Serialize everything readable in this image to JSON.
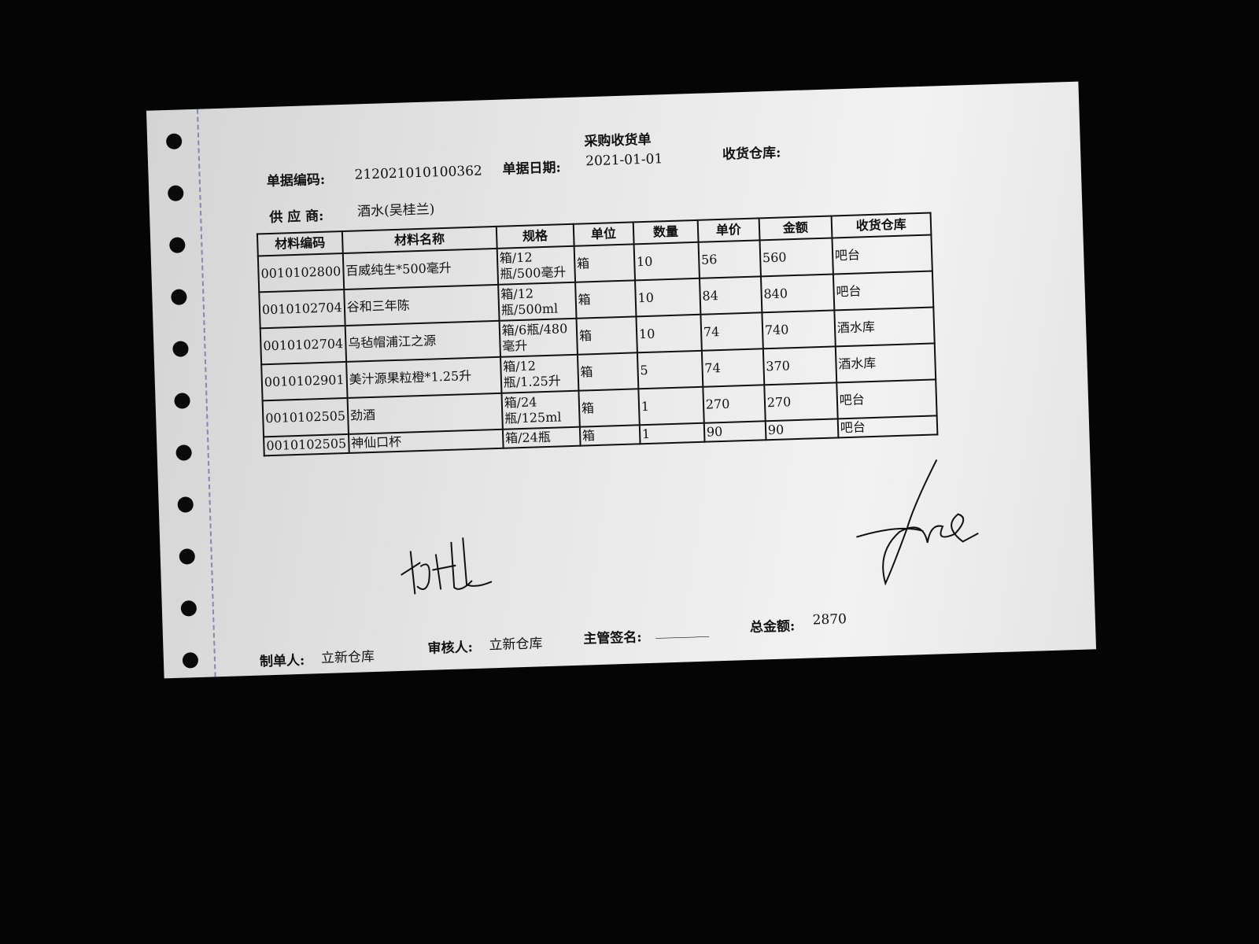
{
  "document": {
    "title": "采购收货单",
    "doc_no_label": "单据编码:",
    "doc_no": "212021010100362",
    "date_label": "单据日期:",
    "date": "2021-01-01",
    "warehouse_label": "收货仓库:",
    "supplier_label": "供 应 商:",
    "supplier": "酒水(吴桂兰)"
  },
  "table": {
    "headers": [
      "材料编码",
      "材料名称",
      "规格",
      "单位",
      "数量",
      "单价",
      "金额",
      "收货仓库"
    ],
    "rows": [
      [
        "0010102800",
        "百威纯生*500毫升",
        "箱/12瓶/500毫升",
        "箱",
        "10",
        "56",
        "560",
        "吧台"
      ],
      [
        "0010102704",
        "谷和三年陈",
        "箱/12瓶/500ml",
        "箱",
        "10",
        "84",
        "840",
        "吧台"
      ],
      [
        "0010102704",
        "乌毡帽浦江之源",
        "箱/6瓶/480毫升",
        "箱",
        "10",
        "74",
        "740",
        "酒水库"
      ],
      [
        "0010102901",
        "美汁源果粒橙*1.25升",
        "箱/12瓶/1.25升",
        "箱",
        "5",
        "74",
        "370",
        "酒水库"
      ],
      [
        "0010102505",
        "劲酒",
        "箱/24瓶/125ml",
        "箱",
        "1",
        "270",
        "270",
        "吧台"
      ],
      [
        "0010102505",
        "神仙口杯",
        "箱/24瓶",
        "箱",
        "1",
        "90",
        "90",
        "吧台"
      ]
    ]
  },
  "footer": {
    "maker_label": "制单人:",
    "maker": "立新仓库",
    "reviewer_label": "审核人:",
    "reviewer": "立新仓库",
    "supervisor_label": "主管签名:",
    "supervisor_blank": "________",
    "total_label": "总金额:",
    "total": "2870"
  }
}
